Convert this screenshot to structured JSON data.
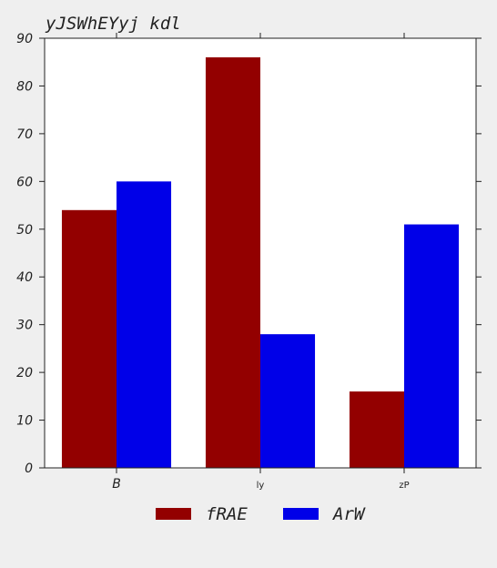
{
  "chart_data": {
    "type": "bar",
    "title": "yJSWhEYyj kdl",
    "xlabel": "",
    "ylabel": "",
    "categories": [
      "B",
      "ly",
      "zP"
    ],
    "series": [
      {
        "name": "fRAE",
        "color": "#930000",
        "values": [
          54,
          86,
          16
        ]
      },
      {
        "name": "ArW",
        "color": "#0000e8",
        "values": [
          60,
          28,
          51
        ]
      }
    ],
    "ylim": [
      0,
      90
    ],
    "yticks": [
      0,
      10,
      20,
      30,
      40,
      50,
      60,
      70,
      80,
      90
    ],
    "grid": false,
    "legend": "bottom-center"
  }
}
